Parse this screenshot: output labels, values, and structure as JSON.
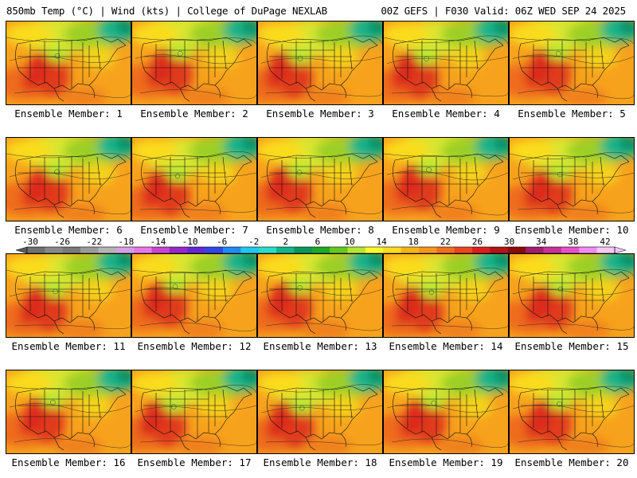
{
  "header": {
    "left": "850mb Temp (°C) | Wind (kts) | College of DuPage NEXLAB",
    "right": "00Z GEFS | F030 Valid: 06Z WED SEP 24 2025"
  },
  "panels": [
    {
      "label": "Ensemble Member: 1"
    },
    {
      "label": "Ensemble Member: 2"
    },
    {
      "label": "Ensemble Member: 3"
    },
    {
      "label": "Ensemble Member: 4"
    },
    {
      "label": "Ensemble Member: 5"
    },
    {
      "label": "Ensemble Member: 6"
    },
    {
      "label": "Ensemble Member: 7"
    },
    {
      "label": "Ensemble Member: 8"
    },
    {
      "label": "Ensemble Member: 9"
    },
    {
      "label": "Ensemble Member: 10"
    },
    {
      "label": "Ensemble Member: 11"
    },
    {
      "label": "Ensemble Member: 12"
    },
    {
      "label": "Ensemble Member: 13"
    },
    {
      "label": "Ensemble Member: 14"
    },
    {
      "label": "Ensemble Member: 15"
    },
    {
      "label": "Ensemble Member: 16"
    },
    {
      "label": "Ensemble Member: 17"
    },
    {
      "label": "Ensemble Member: 18"
    },
    {
      "label": "Ensemble Member: 19"
    },
    {
      "label": "Ensemble Member: 20"
    }
  ],
  "colorbar": {
    "labels": [
      "-30",
      "-26",
      "-22",
      "-18",
      "-14",
      "-10",
      "-6",
      "-2",
      "2",
      "6",
      "10",
      "14",
      "18",
      "22",
      "26",
      "30",
      "34",
      "38",
      "42"
    ],
    "colors": [
      "#707070",
      "#888888",
      "#7a7a7a",
      "#9a9a9a",
      "#b4b4b4",
      "#d4a0e6",
      "#e678e6",
      "#c846d2",
      "#9628c8",
      "#6428d2",
      "#3246e6",
      "#1e8cf0",
      "#1ec8f0",
      "#28dcc8",
      "#14b48c",
      "#0a965a",
      "#1eaa28",
      "#64c81e",
      "#b4e632",
      "#fafa28",
      "#fadc1e",
      "#f5b414",
      "#f5961e",
      "#f06e1e",
      "#eb461e",
      "#dc1e1e",
      "#b41414",
      "#8c0a0a",
      "#a01e6e",
      "#c83296",
      "#e650c8",
      "#f08cf0",
      "#f5c8f5"
    ]
  }
}
